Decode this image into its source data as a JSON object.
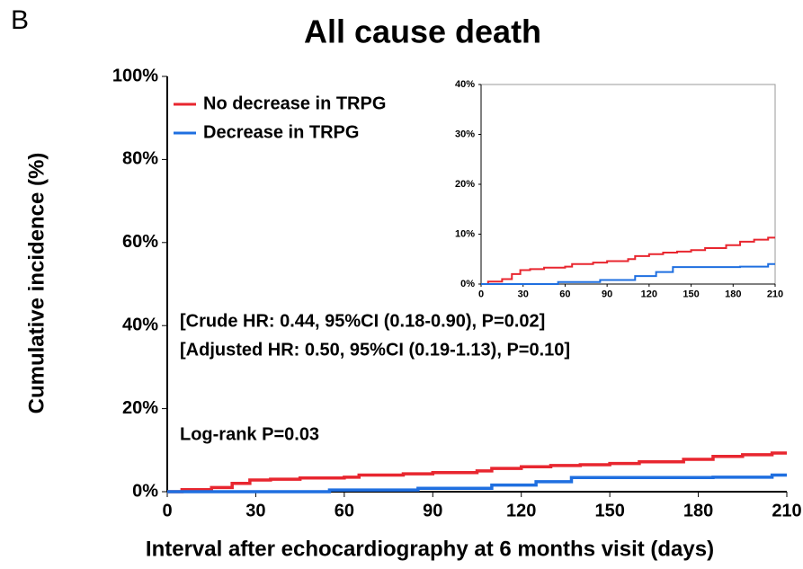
{
  "panel_label": "B",
  "chart_data": [
    {
      "type": "line",
      "title": "All cause death",
      "xlabel": "Interval after echocardiography at 6 months visit (days)",
      "ylabel": "Cumulative incidence (%)",
      "xlim": [
        0,
        210
      ],
      "xticks": [
        0,
        30,
        60,
        90,
        120,
        150,
        180,
        210
      ],
      "ylim": [
        0,
        100
      ],
      "yticks": [
        {
          "value": 0,
          "label": "0%"
        },
        {
          "value": 20,
          "label": "20%"
        },
        {
          "value": 40,
          "label": "40%"
        },
        {
          "value": 60,
          "label": "60%"
        },
        {
          "value": 80,
          "label": "80%"
        },
        {
          "value": 100,
          "label": "100%"
        }
      ],
      "grid": false,
      "legend": "upper left",
      "annotations": [
        "[Crude HR: 0.44, 95%CI (0.18-0.90), P=0.02]",
        "[Adjusted HR: 0.50, 95%CI (0.19-1.13), P=0.10]",
        "Log-rank P=0.03"
      ],
      "series": [
        {
          "name": "No decrease in TRPG",
          "color": "#e8262f",
          "x": [
            0,
            5,
            5,
            15,
            15,
            22,
            22,
            28,
            28,
            35,
            35,
            45,
            45,
            60,
            60,
            65,
            65,
            80,
            80,
            90,
            90,
            105,
            105,
            110,
            110,
            120,
            120,
            130,
            130,
            140,
            140,
            150,
            150,
            160,
            160,
            175,
            175,
            185,
            185,
            195,
            195,
            205,
            205,
            210
          ],
          "values": [
            0,
            0,
            0.5,
            0.5,
            1,
            1,
            2,
            2,
            2.8,
            2.8,
            3,
            3,
            3.3,
            3.3,
            3.5,
            3.5,
            4,
            4,
            4.3,
            4.3,
            4.6,
            4.6,
            5,
            5,
            5.6,
            5.6,
            6,
            6,
            6.3,
            6.3,
            6.5,
            6.5,
            6.8,
            6.8,
            7.2,
            7.2,
            7.8,
            7.8,
            8.5,
            8.5,
            8.9,
            8.9,
            9.3,
            9.3
          ]
        },
        {
          "name": "Decrease in TRPG",
          "color": "#1f6fe0",
          "x": [
            0,
            55,
            55,
            85,
            85,
            110,
            110,
            125,
            125,
            137,
            137,
            185,
            185,
            205,
            205,
            210
          ],
          "values": [
            0,
            0,
            0.4,
            0.4,
            0.8,
            0.8,
            1.6,
            1.6,
            2.4,
            2.4,
            3.4,
            3.4,
            3.5,
            3.5,
            4,
            4
          ]
        }
      ]
    },
    {
      "type": "line",
      "xlim": [
        0,
        210
      ],
      "xticks": [
        0,
        30,
        60,
        90,
        120,
        150,
        180,
        210
      ],
      "ylim": [
        0,
        40
      ],
      "yticks": [
        {
          "value": 0,
          "label": "0%"
        },
        {
          "value": 10,
          "label": "10%"
        },
        {
          "value": 20,
          "label": "20%"
        },
        {
          "value": 30,
          "label": "30%"
        },
        {
          "value": 40,
          "label": "40%"
        }
      ]
    }
  ]
}
